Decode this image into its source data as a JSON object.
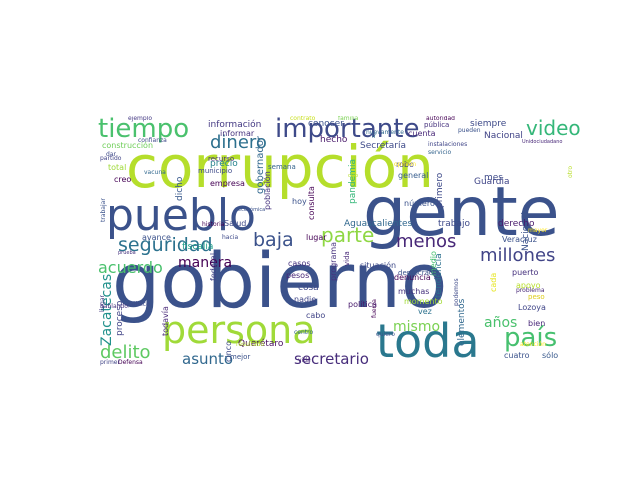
{
  "words": [
    {
      "id": "corrupcion",
      "text": "corrupción",
      "color": "#b5de2b"
    },
    {
      "id": "gobierno",
      "text": "gobierno",
      "color": "#3b528b"
    },
    {
      "id": "gente",
      "text": "gente",
      "color": "#3b528b"
    },
    {
      "id": "pueblo",
      "text": "pueblo",
      "color": "#3b528b"
    },
    {
      "id": "persona",
      "text": "persona",
      "color": "#a0da39"
    },
    {
      "id": "toda",
      "text": "toda",
      "color": "#2a788e"
    },
    {
      "id": "importante",
      "text": "importante",
      "color": "#3e4a89"
    },
    {
      "id": "tiempo",
      "text": "tiempo",
      "color": "#4ac16d"
    },
    {
      "id": "video",
      "text": "video",
      "color": "#35b779"
    },
    {
      "id": "pais",
      "text": "país",
      "color": "#46c06f"
    },
    {
      "id": "seguridad",
      "text": "seguridad",
      "color": "#2c728e"
    },
    {
      "id": "acuerdo",
      "text": "acuerdo",
      "color": "#4ac16d"
    },
    {
      "id": "baja",
      "text": "baja",
      "color": "#3b528b"
    },
    {
      "id": "dinero",
      "text": "dinero",
      "color": "#2d708e"
    },
    {
      "id": "millones",
      "text": "millones",
      "color": "#414487"
    },
    {
      "id": "menos",
      "text": "menos",
      "color": "#482878"
    },
    {
      "id": "parte",
      "text": "parte",
      "color": "#8fd744"
    },
    {
      "id": "delito",
      "text": "delito",
      "color": "#5ec962"
    },
    {
      "id": "asunto",
      "text": "asunto",
      "color": "#31688e"
    },
    {
      "id": "secretario",
      "text": "secretario",
      "color": "#472d7b"
    },
    {
      "id": "mismo",
      "text": "mismo",
      "color": "#7ad151"
    },
    {
      "id": "anos",
      "text": "años",
      "color": "#4ac16d"
    },
    {
      "id": "manera",
      "text": "manera",
      "color": "#440154"
    },
    {
      "id": "zacatecas",
      "text": "Zacatecas",
      "color": "#21918c"
    },
    {
      "id": "proceso",
      "text": "proceso",
      "color": "#414487"
    },
    {
      "id": "fiscalia",
      "text": "fiscalía",
      "color": "#1f9e89"
    },
    {
      "id": "informacion",
      "text": "información",
      "color": "#443983"
    },
    {
      "id": "informar",
      "text": "informar",
      "color": "#46327e"
    },
    {
      "id": "construccion",
      "text": "construcción",
      "color": "#6ece58"
    },
    {
      "id": "empresa",
      "text": "empresa",
      "color": "#440154"
    },
    {
      "id": "precio",
      "text": "precio",
      "color": "#26828e"
    },
    {
      "id": "gobernador",
      "text": "gobernador",
      "color": "#31688e"
    },
    {
      "id": "poblacion",
      "text": "población",
      "color": "#46327e"
    },
    {
      "id": "conocer",
      "text": "conocer",
      "color": "#3b528b"
    },
    {
      "id": "hecho",
      "text": "hecho",
      "color": "#48186a"
    },
    {
      "id": "consulta",
      "text": "consulta",
      "color": "#440154"
    },
    {
      "id": "secretaria",
      "text": "Secretaría",
      "color": "#3e4a89"
    },
    {
      "id": "pandemia",
      "text": "pandemia",
      "color": "#35b779"
    },
    {
      "id": "aguascalientes",
      "text": "Aguascalientes",
      "color": "#31688e"
    },
    {
      "id": "trabajo",
      "text": "trabajo",
      "color": "#3e4a89"
    },
    {
      "id": "derecho",
      "text": "derecho",
      "color": "#481a6c"
    },
    {
      "id": "robo",
      "text": "robo",
      "color": "#414487"
    },
    {
      "id": "nacional1",
      "text": "Nacional",
      "color": "#3b528b"
    },
    {
      "id": "nacional2",
      "text": "Nacional",
      "color": "#414487"
    },
    {
      "id": "guardia",
      "text": "Guardia",
      "color": "#404688"
    },
    {
      "id": "primero",
      "text": "primero",
      "color": "#3e4a89"
    },
    {
      "id": "mes",
      "text": "mes",
      "color": "#3e4a89"
    },
    {
      "id": "general",
      "text": "general",
      "color": "#365c8d"
    },
    {
      "id": "cuenta",
      "text": "cuenta",
      "color": "#482878"
    },
    {
      "id": "siempre",
      "text": "siempre",
      "color": "#3e4a89"
    },
    {
      "id": "veracruz",
      "text": "Veracruz",
      "color": "#3b528b"
    },
    {
      "id": "tendencia",
      "text": "tendencia",
      "color": "#2d708e"
    },
    {
      "id": "denuncia",
      "text": "denuncia",
      "color": "#440154"
    },
    {
      "id": "situacion",
      "text": "situación",
      "color": "#3e4a89"
    },
    {
      "id": "puerto",
      "text": "puerto",
      "color": "#46327e"
    },
    {
      "id": "apoyo",
      "text": "apoyo",
      "color": "#b8de29"
    },
    {
      "id": "peso",
      "text": "peso",
      "color": "#ddcc1b"
    },
    {
      "id": "lozoya",
      "text": "Lozoya",
      "color": "#404688"
    },
    {
      "id": "bien",
      "text": "bien",
      "color": "#482878"
    },
    {
      "id": "cuatro",
      "text": "cuatro",
      "color": "#3b528b"
    },
    {
      "id": "solo",
      "text": "sólo",
      "color": "#38598c"
    },
    {
      "id": "queretaro",
      "text": "Querétaro",
      "color": "#460b5e"
    },
    {
      "id": "cosa",
      "text": "cosa",
      "color": "#3e4a89"
    },
    {
      "id": "nadie",
      "text": "nadie",
      "color": "#404688"
    },
    {
      "id": "cabo",
      "text": "cabo",
      "color": "#414487"
    },
    {
      "id": "politica",
      "text": "política",
      "color": "#481a6c"
    },
    {
      "id": "muchas",
      "text": "muchas",
      "color": "#46327e"
    },
    {
      "id": "momento",
      "text": "momento",
      "color": "#a2da37"
    },
    {
      "id": "democracia",
      "text": "democracia",
      "color": "#3b528b"
    },
    {
      "id": "elementos",
      "text": "elementos",
      "color": "#31688e"
    },
    {
      "id": "vez",
      "text": "vez",
      "color": "#2c728e"
    },
    {
      "id": "casos",
      "text": "casos",
      "color": "#46327e"
    },
    {
      "id": "lugar",
      "text": "lugar",
      "color": "#440154"
    },
    {
      "id": "hoy",
      "text": "hoy",
      "color": "#3b528b"
    },
    {
      "id": "pesos",
      "text": "pesos",
      "color": "#482677"
    },
    {
      "id": "programa",
      "text": "programa",
      "color": "#46327e"
    },
    {
      "id": "salud",
      "text": "Salud",
      "color": "#3e4a89"
    },
    {
      "id": "semana",
      "text": "semana",
      "color": "#33638d"
    },
    {
      "id": "avance",
      "text": "avance",
      "color": "#3b528b"
    },
    {
      "id": "federal",
      "text": "federal",
      "color": "#414487"
    },
    {
      "id": "cinco",
      "text": "cinco",
      "color": "#3e4a89"
    },
    {
      "id": "mejor",
      "text": "mejor",
      "color": "#3b528b"
    },
    {
      "id": "todavia",
      "text": "todavía",
      "color": "#482878"
    },
    {
      "id": "dicho",
      "text": "dicho",
      "color": "#38598c"
    },
    {
      "id": "total",
      "text": "total",
      "color": "#a0da39"
    },
    {
      "id": "creo",
      "text": "creo",
      "color": "#440154"
    },
    {
      "id": "municipio",
      "text": "municipio",
      "color": "#3e4a89"
    },
    {
      "id": "numero",
      "text": "número",
      "color": "#3b528b"
    },
    {
      "id": "ley",
      "text": "ley",
      "color": "#481a6c"
    },
    {
      "id": "medio",
      "text": "medio",
      "color": "#46c06f"
    },
    {
      "id": "cabo2",
      "text": "cada",
      "color": "#e5e419"
    },
    {
      "id": "recurso",
      "text": "recurso",
      "color": "#46327e"
    },
    {
      "id": "contrato",
      "text": "contrato",
      "color": "#c8e020"
    },
    {
      "id": "familia",
      "text": "familia",
      "color": "#7ad151"
    },
    {
      "id": "autoridad",
      "text": "autoridad",
      "color": "#440154"
    },
    {
      "id": "pueden",
      "text": "pueden",
      "color": "#3b528b"
    },
    {
      "id": "instalaciones",
      "text": "instalaciones",
      "color": "#404688"
    },
    {
      "id": "unidociudadano",
      "text": "Unidociudadano",
      "color": "#482878"
    },
    {
      "id": "ejemplo",
      "text": "ejemplo",
      "color": "#443983"
    },
    {
      "id": "confianza",
      "text": "confianza",
      "color": "#3e4a89"
    },
    {
      "id": "nuevamente",
      "text": "nuevamente",
      "color": "#31688e"
    },
    {
      "id": "servicio",
      "text": "servicio",
      "color": "#33638d"
    },
    {
      "id": "opinion",
      "text": "opinión",
      "color": "#fde725"
    },
    {
      "id": "dar",
      "text": "dar",
      "color": "#3e4a89"
    },
    {
      "id": "ir",
      "text": "ir",
      "color": "#2c728e"
    },
    {
      "id": "publica",
      "text": "pública",
      "color": "#46327e"
    },
    {
      "id": "partido",
      "text": "partido",
      "color": "#414487"
    },
    {
      "id": "vacuna",
      "text": "vacuna",
      "color": "#31688e"
    },
    {
      "id": "historia",
      "text": "historia",
      "color": "#440154"
    },
    {
      "id": "cantidad",
      "text": "cantidad",
      "color": "#482878"
    },
    {
      "id": "debe",
      "text": "debe",
      "color": "#46327e"
    },
    {
      "id": "trabajar",
      "text": "trabajar",
      "color": "#3b528b"
    },
    {
      "id": "prueba",
      "text": "prueba",
      "color": "#46327e"
    },
    {
      "id": "hacia",
      "text": "hacia",
      "color": "#3e4a89"
    },
    {
      "id": "economica",
      "text": "económica",
      "color": "#3b528b"
    },
    {
      "id": "centro",
      "text": "centro",
      "color": "#33638d"
    },
    {
      "id": "vida",
      "text": "vida",
      "color": "#482878"
    },
    {
      "id": "resultado",
      "text": "resultado",
      "color": "#b5de2b"
    },
    {
      "id": "primer",
      "text": "primer",
      "color": "#414487"
    },
    {
      "id": "defensa",
      "text": "Defensa",
      "color": "#440154"
    },
    {
      "id": "publico",
      "text": "público",
      "color": "#3e4a89"
    },
    {
      "id": "obra",
      "text": "obra",
      "color": "#482878"
    },
    {
      "id": "llegar",
      "text": "llegar",
      "color": "#443983"
    },
    {
      "id": "hablando",
      "text": "hablando",
      "color": "#46327e"
    },
    {
      "id": "quiero",
      "text": "quiero",
      "color": "#3b528b"
    },
    {
      "id": "fuerza",
      "text": "fuerza",
      "color": "#440154"
    },
    {
      "id": "podemos",
      "text": "podemos",
      "color": "#3e4a89"
    },
    {
      "id": "problema",
      "text": "problema",
      "color": "#482878"
    },
    {
      "id": "atencion",
      "text": "atención",
      "color": "#fde725"
    },
    {
      "id": "mayor",
      "text": "mayor",
      "color": "#fde725"
    },
    {
      "id": "nivel",
      "text": "nivel",
      "color": "#dde318"
    },
    {
      "id": "otro",
      "text": "otro",
      "color": "#b8de29"
    }
  ]
}
